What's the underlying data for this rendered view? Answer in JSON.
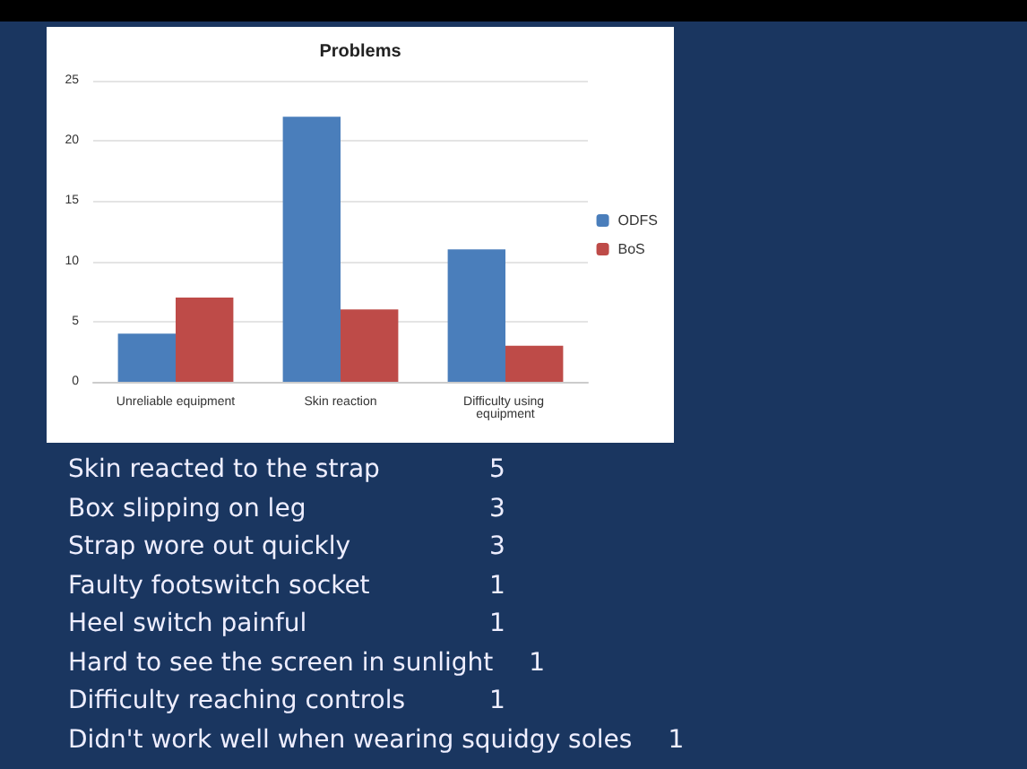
{
  "chart_data": {
    "type": "bar",
    "title": "Problems",
    "categories": [
      "Unreliable equipment",
      "Skin reaction",
      "Difficulty using equipment"
    ],
    "series": [
      {
        "name": "ODFS",
        "color": "#4a7ebb",
        "values": [
          4,
          22,
          11
        ]
      },
      {
        "name": "BoS",
        "color": "#be4b48",
        "values": [
          7,
          6,
          3
        ]
      }
    ],
    "ylim": [
      0,
      25
    ],
    "yticks": [
      0,
      5,
      10,
      15,
      20,
      25
    ],
    "grid": "y",
    "legend": "right",
    "annotations": [
      "Skin reacted to the strap",
      "5",
      "Box slipping on leg",
      "3",
      "Strap wore out quickly",
      "3",
      "Faulty footswitch socket",
      "1",
      "Heel switch painful",
      "1",
      "Hard to see the screen in sunlight",
      "1",
      "Difficulty reaching controls",
      "1",
      "Didn't work well when wearing squidgy soles",
      "1"
    ]
  }
}
